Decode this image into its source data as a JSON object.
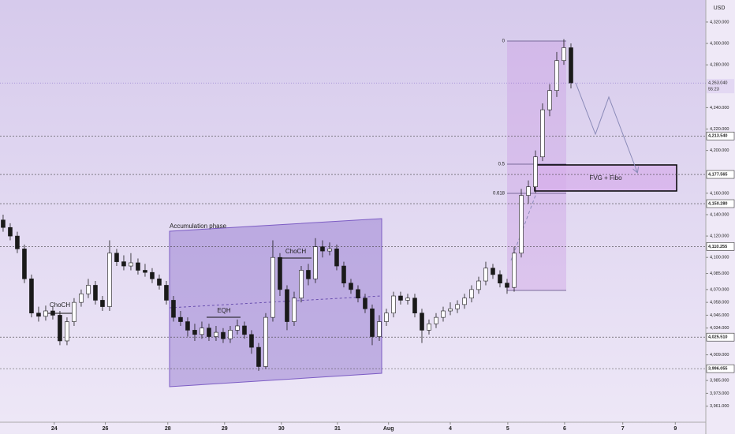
{
  "chart_data": {
    "type": "candlestick",
    "currency": "USD",
    "x": [
      0,
      1,
      2,
      3,
      4,
      5,
      6,
      7,
      8,
      9,
      10,
      11,
      12,
      13,
      14,
      15,
      16,
      17,
      18,
      19,
      20,
      21,
      22,
      23,
      24,
      25,
      26,
      27,
      28,
      29,
      30,
      31,
      32,
      33,
      34,
      35,
      36,
      37,
      38,
      39,
      40,
      41,
      42,
      43,
      44,
      45,
      46,
      47,
      48,
      49,
      50,
      51,
      52,
      53,
      54,
      55,
      56,
      57,
      58,
      59,
      60,
      61,
      62,
      63,
      64,
      65,
      66,
      67,
      68,
      69,
      70,
      71,
      72,
      73,
      74,
      75,
      76,
      77,
      78,
      79,
      80
    ],
    "open": [
      4135,
      4128,
      4120,
      4108,
      4080,
      4048,
      4045,
      4050,
      4046,
      4022,
      4040,
      4058,
      4066,
      4074,
      4060,
      4054,
      4104,
      4096,
      4092,
      4095,
      4088,
      4086,
      4080,
      4074,
      4060,
      4044,
      4040,
      4032,
      4028,
      4034,
      4026,
      4030,
      4024,
      4032,
      4036,
      4028,
      4016,
      3998,
      4044,
      4100,
      4070,
      4040,
      4062,
      4088,
      4080,
      4110,
      4106,
      4108,
      4092,
      4076,
      4070,
      4062,
      4052,
      4026,
      4040,
      4048,
      4064,
      4060,
      4062,
      4048,
      4032,
      4038,
      4044,
      4050,
      4052,
      4056,
      4062,
      4070,
      4078,
      4090,
      4084,
      4076,
      4072,
      4104,
      4158,
      4166,
      4194,
      4238,
      4256,
      4284,
      4296
    ],
    "high": [
      4140,
      4132,
      4124,
      4112,
      4084,
      4054,
      4055,
      4054,
      4050,
      4044,
      4062,
      4070,
      4080,
      4078,
      4064,
      4116,
      4108,
      4102,
      4104,
      4099,
      4094,
      4090,
      4084,
      4078,
      4064,
      4050,
      4044,
      4038,
      4040,
      4038,
      4036,
      4034,
      4036,
      4042,
      4040,
      4032,
      4020,
      4048,
      4116,
      4104,
      4074,
      4068,
      4092,
      4094,
      4118,
      4116,
      4114,
      4112,
      4096,
      4080,
      4074,
      4066,
      4056,
      4046,
      4052,
      4068,
      4068,
      4066,
      4066,
      4052,
      4042,
      4048,
      4054,
      4058,
      4060,
      4066,
      4074,
      4082,
      4096,
      4094,
      4088,
      4080,
      4110,
      4164,
      4172,
      4200,
      4244,
      4262,
      4292,
      4304,
      4300
    ],
    "low": [
      4124,
      4116,
      4104,
      4076,
      4044,
      4040,
      4041,
      4042,
      4018,
      4018,
      4036,
      4054,
      4062,
      4056,
      4050,
      4050,
      4092,
      4088,
      4088,
      4084,
      4082,
      4076,
      4070,
      4056,
      4040,
      4036,
      4026,
      4022,
      4024,
      4022,
      4022,
      4020,
      4020,
      4028,
      4024,
      4010,
      3994,
      3996,
      4040,
      4064,
      4032,
      4036,
      4058,
      4074,
      4076,
      4100,
      4102,
      4088,
      4072,
      4066,
      4058,
      4048,
      4018,
      4022,
      4036,
      4044,
      4056,
      4056,
      4044,
      4020,
      4028,
      4034,
      4040,
      4046,
      4048,
      4052,
      4058,
      4066,
      4074,
      4080,
      4072,
      4066,
      4068,
      4100,
      4150,
      4160,
      4190,
      4232,
      4250,
      4280,
      4258
    ],
    "close": [
      4128,
      4120,
      4108,
      4080,
      4048,
      4045,
      4050,
      4046,
      4022,
      4040,
      4058,
      4066,
      4074,
      4060,
      4054,
      4104,
      4096,
      4092,
      4095,
      4088,
      4086,
      4080,
      4074,
      4060,
      4044,
      4040,
      4032,
      4028,
      4034,
      4026,
      4030,
      4024,
      4032,
      4036,
      4028,
      4016,
      3998,
      4044,
      4100,
      4070,
      4040,
      4062,
      4088,
      4080,
      4110,
      4106,
      4108,
      4092,
      4076,
      4070,
      4062,
      4052,
      4026,
      4040,
      4048,
      4064,
      4060,
      4062,
      4048,
      4032,
      4038,
      4044,
      4050,
      4052,
      4056,
      4062,
      4070,
      4078,
      4090,
      4084,
      4076,
      4072,
      4104,
      4158,
      4166,
      4194,
      4238,
      4256,
      4284,
      4296,
      4263.04
    ],
    "up_color": "#ffffff",
    "down_color": "#1a1a1a",
    "xlim": [
      -0.44,
      99
    ],
    "ylim": [
      3946,
      4340.6
    ],
    "grid": false,
    "xticks": [
      {
        "value": 7.2,
        "label": "24"
      },
      {
        "value": 14.4,
        "label": "26"
      },
      {
        "value": 23.2,
        "label": "28"
      },
      {
        "value": 31.2,
        "label": "29"
      },
      {
        "value": 39.2,
        "label": "30"
      },
      {
        "value": 47.1,
        "label": "31"
      },
      {
        "value": 54.3,
        "label": "Aug"
      },
      {
        "value": 63,
        "label": "4"
      },
      {
        "value": 71.1,
        "label": "5"
      },
      {
        "value": 79.1,
        "label": "6"
      },
      {
        "value": 87.3,
        "label": "7"
      },
      {
        "value": 94.7,
        "label": "9"
      }
    ],
    "yticks": [
      {
        "value": 4320,
        "label": "4,320.000"
      },
      {
        "value": 4300,
        "label": "4,300.000"
      },
      {
        "value": 4280,
        "label": "4,280.000"
      },
      {
        "value": 4240,
        "label": "4,240.000"
      },
      {
        "value": 4220,
        "label": "4,220.000"
      },
      {
        "value": 4200,
        "label": "4,200.000"
      },
      {
        "value": 4160,
        "label": "4,160.000"
      },
      {
        "value": 4140,
        "label": "4,140.000"
      },
      {
        "value": 4120,
        "label": "4,120.000"
      },
      {
        "value": 4100,
        "label": "4,100.000"
      },
      {
        "value": 4085,
        "label": "4,085.000"
      },
      {
        "value": 4070,
        "label": "4,070.000"
      },
      {
        "value": 4058,
        "label": "4,058.000"
      },
      {
        "value": 4046,
        "label": "4,046.000"
      },
      {
        "value": 4034,
        "label": "4,034.000"
      },
      {
        "value": 4009,
        "label": "4,009.000"
      },
      {
        "value": 3985,
        "label": "3,985.000"
      },
      {
        "value": 3973,
        "label": "3,973.000"
      },
      {
        "value": 3961,
        "label": "3,961.000"
      }
    ],
    "levels": [
      {
        "value": 4213.54,
        "label": "4,213.540"
      },
      {
        "value": 4177.565,
        "label": "4,177.565"
      },
      {
        "value": 4150.28,
        "label": "4,150.280"
      },
      {
        "value": 4110.255,
        "label": "4,110.255"
      },
      {
        "value": 4025.51,
        "label": "4,025.510"
      },
      {
        "value": 3996.055,
        "label": "3,996.055"
      }
    ],
    "current_price": {
      "value": 4263.04,
      "label": "4,263.040",
      "timer": "55:23"
    },
    "annotations": {
      "accumulation": "Accumulation phase",
      "eqh": "EQH",
      "choch": [
        "ChoCH",
        "ChoCH"
      ],
      "fvg": "FVG + Fibo",
      "fib": [
        "0",
        "0.5",
        "0.618"
      ]
    }
  }
}
